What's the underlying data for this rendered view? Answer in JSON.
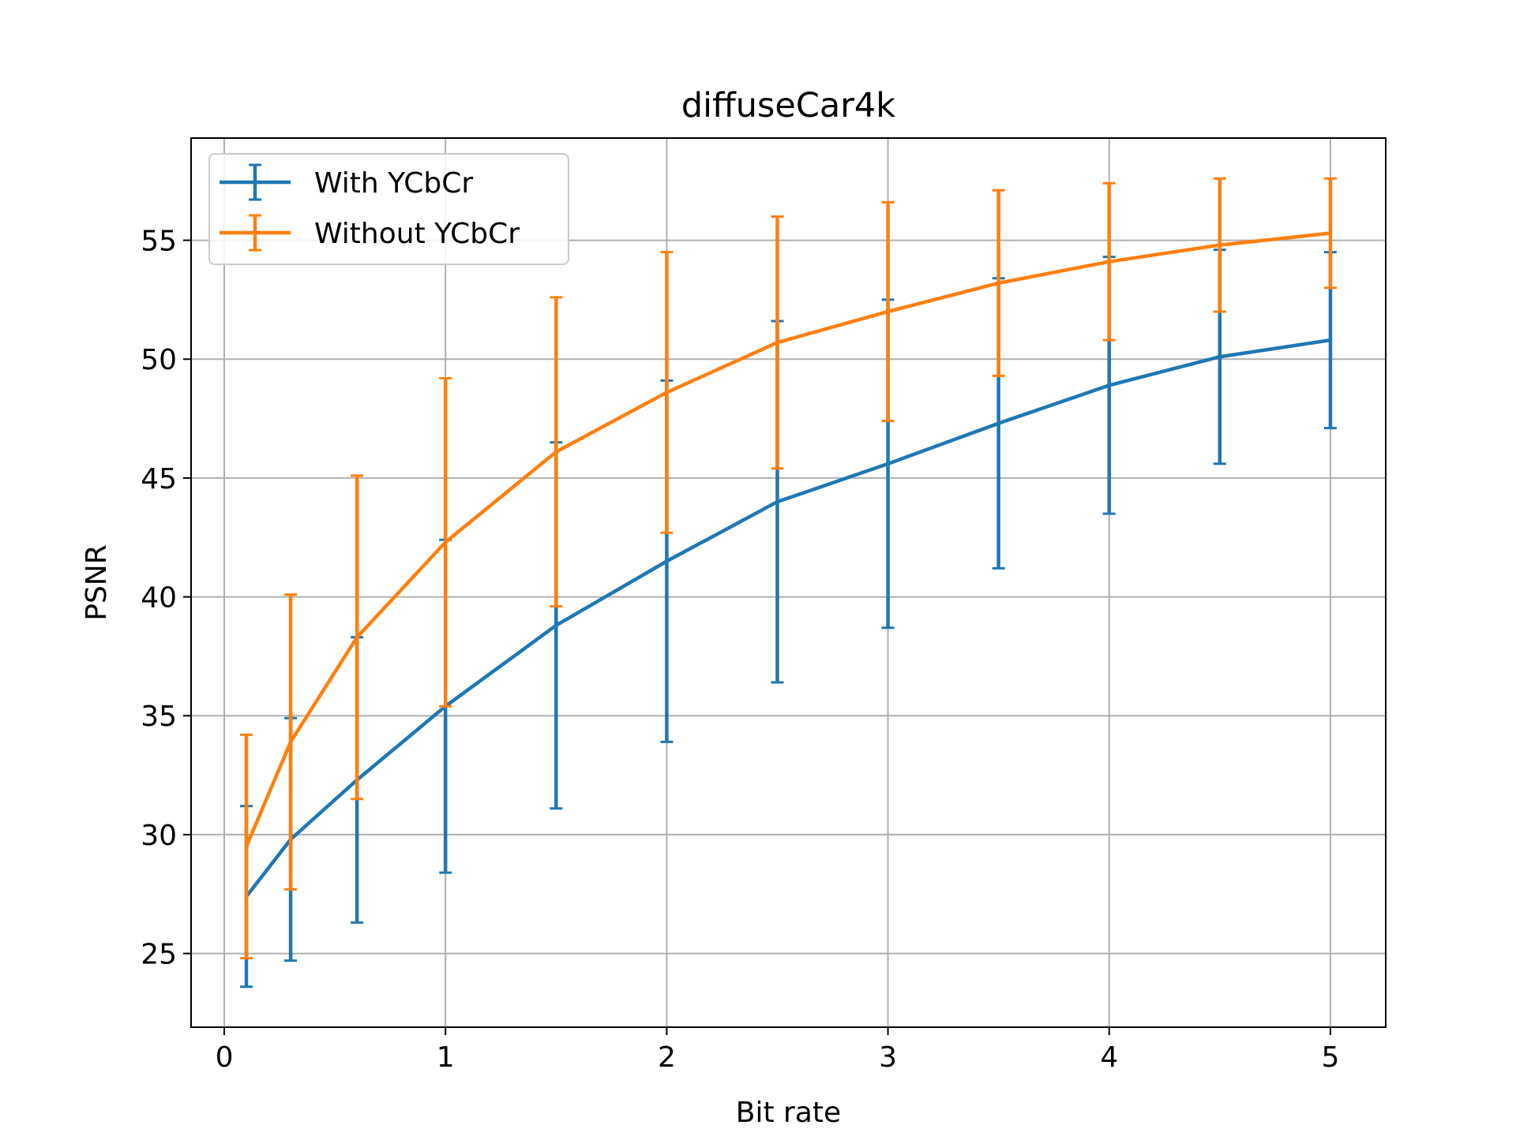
{
  "chart_data": {
    "type": "line",
    "title": "diffuseCar4k",
    "xlabel": "Bit rate",
    "ylabel": "PSNR",
    "xlim": [
      -0.15,
      5.25
    ],
    "ylim": [
      21.9,
      59.3
    ],
    "xticks": [
      0,
      1,
      2,
      3,
      4,
      5
    ],
    "yticks": [
      25,
      30,
      35,
      40,
      45,
      50,
      55
    ],
    "grid": true,
    "legend_position": "upper left",
    "x": [
      0.1,
      0.3,
      0.6,
      1.0,
      1.5,
      2.0,
      2.5,
      3.0,
      3.5,
      4.0,
      4.5,
      5.0
    ],
    "series": [
      {
        "name": "With YCbCr",
        "color": "#1f77b4",
        "values": [
          27.4,
          29.8,
          32.3,
          35.4,
          38.8,
          41.5,
          44.0,
          45.6,
          47.3,
          48.9,
          50.1,
          50.8
        ],
        "error": [
          3.8,
          5.1,
          6.0,
          7.0,
          7.7,
          7.6,
          7.6,
          6.9,
          6.1,
          5.4,
          4.5,
          3.7
        ]
      },
      {
        "name": "Without YCbCr",
        "color": "#ff7f0e",
        "values": [
          29.5,
          33.9,
          38.3,
          42.3,
          46.1,
          48.6,
          50.7,
          52.0,
          53.2,
          54.1,
          54.8,
          55.3
        ],
        "error": [
          4.7,
          6.2,
          6.8,
          6.9,
          6.5,
          5.9,
          5.3,
          4.6,
          3.9,
          3.3,
          2.8,
          2.3
        ]
      }
    ]
  }
}
